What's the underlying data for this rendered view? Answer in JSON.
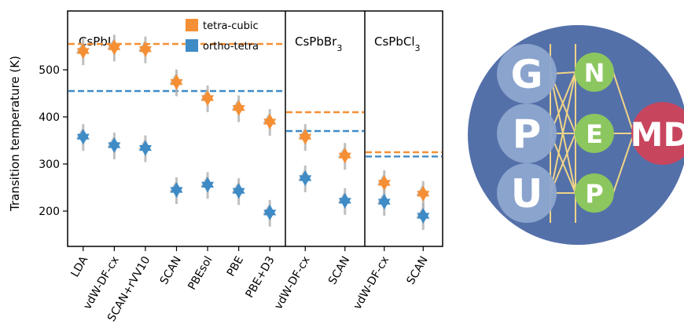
{
  "chart_data": {
    "type": "scatter",
    "ylabel": "Transition temperature (K)",
    "ylim": [
      125,
      625
    ],
    "yticks": [
      200,
      300,
      400,
      500
    ],
    "grid": false,
    "legend": {
      "placement": "top",
      "entries": [
        {
          "label": "tetra-cubic",
          "color": "#f58f35"
        },
        {
          "label": "ortho-tetra",
          "color": "#3f8bc6"
        }
      ]
    },
    "panels": [
      {
        "title": "CsPbI",
        "subscript": "3",
        "categories": [
          "LDA",
          "vdW-DF-cx",
          "SCAN+rVV10",
          "SCAN",
          "PBEsol",
          "PBE",
          "PBE+D3"
        ],
        "experiment": {
          "tetra-cubic": 555,
          "ortho-tetra": 455
        },
        "series": [
          {
            "name": "tetra-cubic",
            "values": [
              540,
              548,
              544,
              474,
              440,
              419,
              390
            ]
          },
          {
            "name": "ortho-tetra",
            "values": [
              358,
              340,
              334,
              245,
              256,
              243,
              197
            ]
          }
        ]
      },
      {
        "title": "CsPbBr",
        "subscript": "3",
        "categories": [
          "vdW-DF-cx",
          "SCAN"
        ],
        "experiment": {
          "tetra-cubic": 410,
          "ortho-tetra": 370
        },
        "series": [
          {
            "name": "tetra-cubic",
            "values": [
              358,
              318
            ]
          },
          {
            "name": "ortho-tetra",
            "values": [
              270,
              222
            ]
          }
        ]
      },
      {
        "title": "CsPbCl",
        "subscript": "3",
        "categories": [
          "vdW-DF-cx",
          "SCAN"
        ],
        "experiment": {
          "tetra-cubic": 325,
          "ortho-tetra": 316
        },
        "series": [
          {
            "name": "tetra-cubic",
            "values": [
              260,
              237
            ]
          },
          {
            "name": "ortho-tetra",
            "values": [
              220,
              190
            ]
          }
        ]
      }
    ]
  },
  "logo": {
    "letters_left": [
      "G",
      "P",
      "U"
    ],
    "letters_mid": [
      "N",
      "E",
      "P"
    ],
    "letter_right": "MD",
    "colors": {
      "background": "#5470a9",
      "left_node": "#8ea7cf",
      "mid_node": "#8cc65f",
      "right_node": "#c8455e",
      "lines": "#f0d487"
    }
  }
}
